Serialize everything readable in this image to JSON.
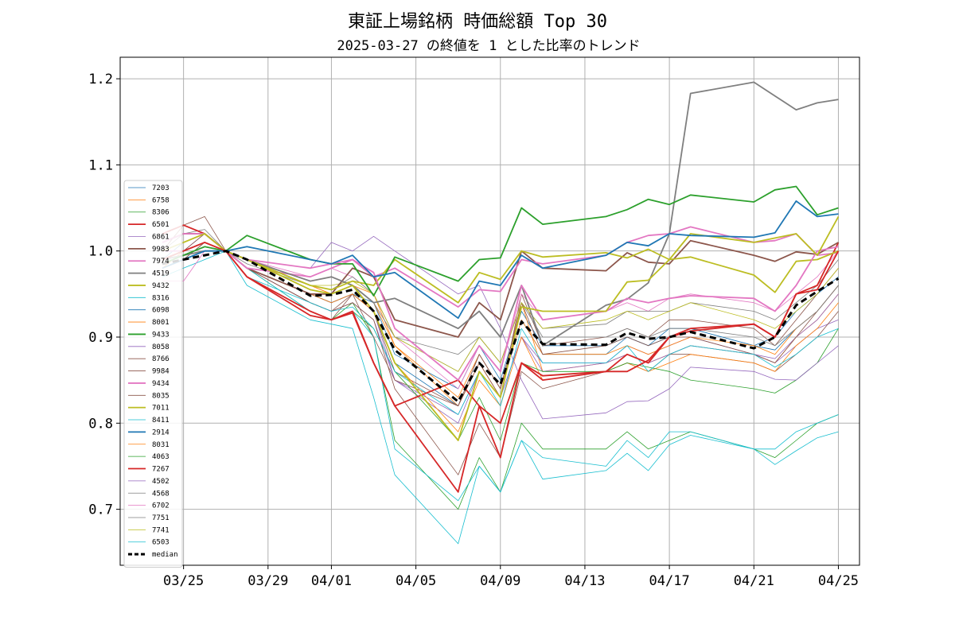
{
  "chart_data": {
    "type": "line",
    "title": "東証上場銘柄 時価総額 Top 30",
    "subtitle": "2025-03-27 の終値を 1 とした比率のトレンド",
    "xlabel": "",
    "ylabel": "",
    "x_range": [
      "2025-03-22",
      "2025-04-26"
    ],
    "ylim": [
      0.635,
      1.225
    ],
    "grid": true,
    "legend_position": "center-left",
    "x_ticks": [
      {
        "date": "2025-03-25",
        "label": "03/25"
      },
      {
        "date": "2025-03-29",
        "label": "03/29"
      },
      {
        "date": "2025-04-01",
        "label": "04/01"
      },
      {
        "date": "2025-04-05",
        "label": "04/05"
      },
      {
        "date": "2025-04-09",
        "label": "04/09"
      },
      {
        "date": "2025-04-13",
        "label": "04/13"
      },
      {
        "date": "2025-04-17",
        "label": "04/17"
      },
      {
        "date": "2025-04-21",
        "label": "04/21"
      },
      {
        "date": "2025-04-25",
        "label": "04/25"
      }
    ],
    "y_ticks": [
      {
        "value": 0.7,
        "label": "0.7"
      },
      {
        "value": 0.8,
        "label": "0.8"
      },
      {
        "value": 0.9,
        "label": "0.9"
      },
      {
        "value": 1.0,
        "label": "1.0"
      },
      {
        "value": 1.1,
        "label": "1.1"
      },
      {
        "value": 1.2,
        "label": "1.2"
      }
    ],
    "dates": [
      "2025-03-24",
      "2025-03-25",
      "2025-03-26",
      "2025-03-27",
      "2025-03-28",
      "2025-03-31",
      "2025-04-01",
      "2025-04-02",
      "2025-04-03",
      "2025-04-04",
      "2025-04-07",
      "2025-04-08",
      "2025-04-09",
      "2025-04-10",
      "2025-04-11",
      "2025-04-14",
      "2025-04-15",
      "2025-04-16",
      "2025-04-17",
      "2025-04-18",
      "2025-04-21",
      "2025-04-22",
      "2025-04-23",
      "2025-04-24",
      "2025-04-25"
    ],
    "series": [
      {
        "name": "7203",
        "color": "#1f77b4",
        "width": 0.8,
        "values": [
          0.99,
          1.01,
          1.02,
          1.0,
          0.98,
          0.95,
          0.94,
          0.95,
          0.94,
          0.88,
          0.84,
          0.89,
          0.85,
          0.93,
          0.89,
          0.89,
          0.9,
          0.89,
          0.9,
          0.91,
          0.89,
          0.9,
          0.93,
          0.95,
          0.97
        ]
      },
      {
        "name": "6758",
        "color": "#ff7f0e",
        "width": 0.8,
        "values": [
          0.98,
          1.0,
          1.01,
          1.0,
          0.99,
          0.96,
          0.95,
          0.96,
          0.95,
          0.89,
          0.82,
          0.87,
          0.83,
          0.94,
          0.86,
          0.87,
          0.88,
          0.87,
          0.88,
          0.89,
          0.88,
          0.87,
          0.9,
          0.92,
          0.95
        ]
      },
      {
        "name": "8306",
        "color": "#2ca02c",
        "width": 0.8,
        "values": [
          0.98,
          0.99,
          1.01,
          1.0,
          0.98,
          0.93,
          0.92,
          0.94,
          0.9,
          0.78,
          0.7,
          0.76,
          0.72,
          0.8,
          0.77,
          0.77,
          0.79,
          0.77,
          0.78,
          0.79,
          0.77,
          0.76,
          0.78,
          0.8,
          0.81
        ]
      },
      {
        "name": "6501",
        "color": "#d62728",
        "width": 1.8,
        "values": [
          1.02,
          1.03,
          1.02,
          1.0,
          0.97,
          0.93,
          0.92,
          0.93,
          0.87,
          0.82,
          0.85,
          0.82,
          0.8,
          0.87,
          0.85,
          0.86,
          0.88,
          0.87,
          0.9,
          0.91,
          0.915,
          0.9,
          0.95,
          0.96,
          1.01
        ]
      },
      {
        "name": "6861",
        "color": "#9467bd",
        "width": 0.8,
        "values": [
          0.99,
          1.0,
          1.02,
          1.0,
          0.98,
          0.95,
          0.94,
          0.95,
          0.93,
          0.85,
          0.8,
          0.86,
          0.83,
          0.9,
          0.86,
          0.87,
          0.89,
          0.88,
          0.89,
          0.9,
          0.88,
          0.87,
          0.89,
          0.91,
          0.92
        ]
      },
      {
        "name": "9983",
        "color": "#8c564b",
        "width": 1.8,
        "values": [
          1.01,
          1.02,
          1.02,
          1.0,
          0.98,
          0.95,
          0.95,
          0.98,
          0.97,
          0.92,
          0.9,
          0.94,
          0.92,
          1.0,
          0.98,
          0.977,
          0.998,
          0.987,
          0.985,
          1.012,
          0.995,
          0.988,
          0.999,
          0.996,
          1.01
        ]
      },
      {
        "name": "7974",
        "color": "#e377c2",
        "width": 1.8,
        "values": [
          1.01,
          1.02,
          1.02,
          1.0,
          0.98,
          0.97,
          0.98,
          0.99,
          0.97,
          0.98,
          0.935,
          0.955,
          0.953,
          0.99,
          0.985,
          0.995,
          1.01,
          1.018,
          1.02,
          1.028,
          1.01,
          1.012,
          1.02,
          0.995,
          0.998
        ]
      },
      {
        "name": "4519",
        "color": "#7f7f7f",
        "width": 1.8,
        "values": [
          0.99,
          0.995,
          1.0,
          1.0,
          0.99,
          0.965,
          0.97,
          0.96,
          0.94,
          0.945,
          0.91,
          0.93,
          0.9,
          0.96,
          0.89,
          0.937,
          0.944,
          0.963,
          1.02,
          1.183,
          1.196,
          1.18,
          1.164,
          1.172,
          1.176
        ]
      },
      {
        "name": "9432",
        "color": "#bcbd22",
        "width": 1.8,
        "values": [
          0.99,
          1.0,
          1.01,
          1.0,
          0.99,
          0.96,
          0.955,
          0.965,
          0.96,
          0.99,
          0.94,
          0.975,
          0.967,
          1.0,
          0.993,
          0.998,
          0.992,
          1.002,
          0.99,
          0.993,
          0.972,
          0.952,
          0.988,
          0.99,
          1.0
        ]
      },
      {
        "name": "8316",
        "color": "#17becf",
        "width": 0.8,
        "values": [
          0.98,
          0.99,
          1.0,
          1.0,
          0.98,
          0.93,
          0.92,
          0.93,
          0.9,
          0.77,
          0.71,
          0.75,
          0.72,
          0.78,
          0.76,
          0.75,
          0.78,
          0.76,
          0.79,
          0.79,
          0.77,
          0.77,
          0.79,
          0.8,
          0.81
        ]
      },
      {
        "name": "6098",
        "color": "#1f77b4",
        "width": 0.8,
        "values": [
          0.99,
          1.0,
          1.01,
          1.0,
          0.98,
          0.95,
          0.94,
          0.95,
          0.93,
          0.87,
          0.82,
          0.88,
          0.84,
          0.92,
          0.88,
          0.88,
          0.9,
          0.89,
          0.91,
          0.91,
          0.89,
          0.885,
          0.91,
          0.93,
          0.96
        ]
      },
      {
        "name": "8001",
        "color": "#ff7f0e",
        "width": 0.8,
        "values": [
          0.99,
          1.0,
          1.01,
          1.0,
          0.99,
          0.96,
          0.95,
          0.96,
          0.94,
          0.89,
          0.83,
          0.88,
          0.84,
          0.92,
          0.88,
          0.88,
          0.89,
          0.88,
          0.89,
          0.9,
          0.89,
          0.88,
          0.91,
          0.93,
          0.96
        ]
      },
      {
        "name": "9433",
        "color": "#2ca02c",
        "width": 1.8,
        "values": [
          0.985,
          0.995,
          1.005,
          1.0,
          1.018,
          0.99,
          0.985,
          0.985,
          0.948,
          0.993,
          0.965,
          0.99,
          0.992,
          1.05,
          1.031,
          1.04,
          1.048,
          1.06,
          1.054,
          1.065,
          1.057,
          1.071,
          1.075,
          1.042,
          1.05
        ]
      },
      {
        "name": "8058",
        "color": "#9467bd",
        "width": 0.8,
        "values": [
          0.99,
          1.0,
          1.01,
          1.0,
          0.98,
          0.94,
          0.93,
          0.94,
          0.92,
          0.85,
          0.81,
          0.86,
          0.83,
          0.9,
          0.87,
          0.87,
          0.88,
          0.87,
          0.88,
          0.89,
          0.88,
          0.875,
          0.9,
          0.92,
          0.95
        ]
      },
      {
        "name": "8766",
        "color": "#8c564b",
        "width": 0.8,
        "values": [
          0.98,
          0.99,
          1.01,
          1.0,
          0.98,
          0.94,
          0.93,
          0.94,
          0.92,
          0.84,
          0.74,
          0.8,
          0.76,
          0.86,
          0.84,
          0.86,
          0.87,
          0.86,
          0.88,
          0.88,
          0.87,
          0.86,
          0.88,
          0.9,
          0.93
        ]
      },
      {
        "name": "9984",
        "color": "#8c564b",
        "width": 0.8,
        "values": [
          1.0,
          1.03,
          1.04,
          1.0,
          0.97,
          0.93,
          0.92,
          0.95,
          0.9,
          0.85,
          0.82,
          0.87,
          0.83,
          0.95,
          0.89,
          0.9,
          0.91,
          0.9,
          0.92,
          0.92,
          0.91,
          0.89,
          0.92,
          0.95,
          0.98
        ]
      },
      {
        "name": "9434",
        "color": "#e377c2",
        "width": 1.8,
        "values": [
          1.0,
          1.0,
          1.01,
          1.0,
          0.99,
          0.98,
          0.985,
          0.99,
          0.975,
          0.91,
          0.85,
          0.89,
          0.86,
          0.96,
          0.92,
          0.93,
          0.945,
          0.94,
          0.945,
          0.948,
          0.945,
          0.93,
          0.96,
          1.0,
          1.005
        ]
      },
      {
        "name": "8035",
        "color": "#8c564b",
        "width": 0.8,
        "values": [
          0.99,
          1.0,
          1.02,
          1.0,
          0.98,
          0.94,
          0.93,
          0.95,
          0.93,
          0.86,
          0.82,
          0.88,
          0.84,
          0.94,
          0.88,
          0.89,
          0.9,
          0.89,
          0.9,
          0.9,
          0.88,
          0.87,
          0.9,
          0.93,
          0.96
        ]
      },
      {
        "name": "7011",
        "color": "#bcbd22",
        "width": 1.8,
        "values": [
          1.0,
          1.01,
          1.02,
          1.0,
          0.99,
          0.955,
          0.95,
          0.96,
          0.93,
          0.87,
          0.78,
          0.86,
          0.83,
          0.935,
          0.93,
          0.93,
          0.964,
          0.966,
          0.99,
          1.02,
          1.01,
          1.015,
          1.02,
          0.995,
          1.04
        ]
      },
      {
        "name": "8411",
        "color": "#17becf",
        "width": 0.8,
        "values": [
          0.97,
          0.98,
          0.99,
          1.0,
          0.96,
          0.92,
          0.915,
          0.91,
          0.83,
          0.74,
          0.66,
          0.75,
          0.72,
          0.78,
          0.735,
          0.745,
          0.765,
          0.745,
          0.775,
          0.786,
          0.77,
          0.752,
          0.768,
          0.783,
          0.79
        ]
      },
      {
        "name": "2914",
        "color": "#1f77b4",
        "width": 1.8,
        "values": [
          0.98,
          0.99,
          1.0,
          1.0,
          1.005,
          0.99,
          0.985,
          0.995,
          0.97,
          0.975,
          0.922,
          0.965,
          0.96,
          0.995,
          0.98,
          0.995,
          1.01,
          1.006,
          1.02,
          1.018,
          1.016,
          1.021,
          1.058,
          1.04,
          1.043
        ]
      },
      {
        "name": "8031",
        "color": "#ff7f0e",
        "width": 0.8,
        "values": [
          0.99,
          1.0,
          1.01,
          1.0,
          0.98,
          0.95,
          0.94,
          0.95,
          0.93,
          0.87,
          0.79,
          0.85,
          0.82,
          0.9,
          0.85,
          0.86,
          0.87,
          0.86,
          0.87,
          0.88,
          0.87,
          0.86,
          0.89,
          0.91,
          0.94
        ]
      },
      {
        "name": "4063",
        "color": "#2ca02c",
        "width": 0.8,
        "values": [
          0.98,
          0.99,
          1.0,
          1.0,
          0.97,
          0.93,
          0.92,
          0.93,
          0.91,
          0.86,
          0.78,
          0.83,
          0.78,
          0.87,
          0.86,
          0.86,
          0.87,
          0.865,
          0.86,
          0.85,
          0.84,
          0.835,
          0.85,
          0.87,
          0.91
        ]
      },
      {
        "name": "7267",
        "color": "#d62728",
        "width": 1.8,
        "values": [
          0.99,
          1.0,
          1.01,
          1.0,
          0.97,
          0.925,
          0.92,
          0.928,
          0.87,
          0.82,
          0.72,
          0.82,
          0.76,
          0.87,
          0.855,
          0.86,
          0.86,
          0.873,
          0.9,
          0.907,
          0.915,
          0.9,
          0.95,
          0.955,
          1.0
        ]
      },
      {
        "name": "4502",
        "color": "#9467bd",
        "width": 0.8,
        "values": [
          1.0,
          1.01,
          1.02,
          1.0,
          0.99,
          0.98,
          1.01,
          1.0,
          1.017,
          1.0,
          0.95,
          0.96,
          0.91,
          0.85,
          0.805,
          0.812,
          0.825,
          0.826,
          0.84,
          0.865,
          0.86,
          0.851,
          0.85,
          0.87,
          0.89
        ]
      },
      {
        "name": "4568",
        "color": "#7f7f7f",
        "width": 0.8,
        "values": [
          0.99,
          1.0,
          1.01,
          1.0,
          0.98,
          0.95,
          0.95,
          0.96,
          0.94,
          0.9,
          0.88,
          0.9,
          0.87,
          0.94,
          0.9,
          0.9,
          0.91,
          0.9,
          0.91,
          0.91,
          0.9,
          0.89,
          0.91,
          0.93,
          0.96
        ]
      },
      {
        "name": "6702",
        "color": "#e377c2",
        "width": 0.8,
        "values": [
          0.965,
          0.965,
          1.0,
          1.0,
          0.99,
          0.97,
          0.98,
          0.97,
          0.95,
          0.9,
          0.84,
          0.89,
          0.86,
          0.95,
          0.92,
          0.93,
          0.94,
          0.93,
          0.945,
          0.95,
          0.94,
          0.93,
          0.95,
          0.97,
          1.0
        ]
      },
      {
        "name": "7751",
        "color": "#7f7f7f",
        "width": 0.8,
        "values": [
          1.0,
          1.02,
          1.025,
          1.0,
          0.985,
          0.96,
          0.955,
          0.97,
          0.95,
          0.9,
          0.86,
          0.9,
          0.87,
          0.94,
          0.91,
          0.915,
          0.93,
          0.93,
          0.93,
          0.94,
          0.93,
          0.92,
          0.94,
          0.96,
          0.99
        ]
      },
      {
        "name": "7741",
        "color": "#bcbd22",
        "width": 0.8,
        "values": [
          0.99,
          1.0,
          1.01,
          1.0,
          0.99,
          0.96,
          0.96,
          0.965,
          0.95,
          0.9,
          0.86,
          0.9,
          0.87,
          0.94,
          0.91,
          0.92,
          0.93,
          0.92,
          0.93,
          0.94,
          0.92,
          0.91,
          0.93,
          0.95,
          0.98
        ]
      },
      {
        "name": "6503",
        "color": "#17becf",
        "width": 0.8,
        "values": [
          0.98,
          0.99,
          1.0,
          1.0,
          0.97,
          0.94,
          0.93,
          0.935,
          0.91,
          0.86,
          0.81,
          0.86,
          0.82,
          0.91,
          0.87,
          0.87,
          0.89,
          0.86,
          0.88,
          0.89,
          0.88,
          0.865,
          0.88,
          0.9,
          0.91
        ]
      },
      {
        "name": "median",
        "color": "#000000",
        "width": 3,
        "dash": "8,5",
        "values": [
          0.985,
          0.99,
          0.995,
          1.0,
          0.99,
          0.948,
          0.949,
          0.955,
          0.93,
          0.885,
          0.825,
          0.87,
          0.845,
          0.918,
          0.892,
          0.891,
          0.905,
          0.898,
          0.9,
          0.906,
          0.887,
          0.9,
          0.937,
          0.953,
          0.968
        ]
      }
    ]
  }
}
